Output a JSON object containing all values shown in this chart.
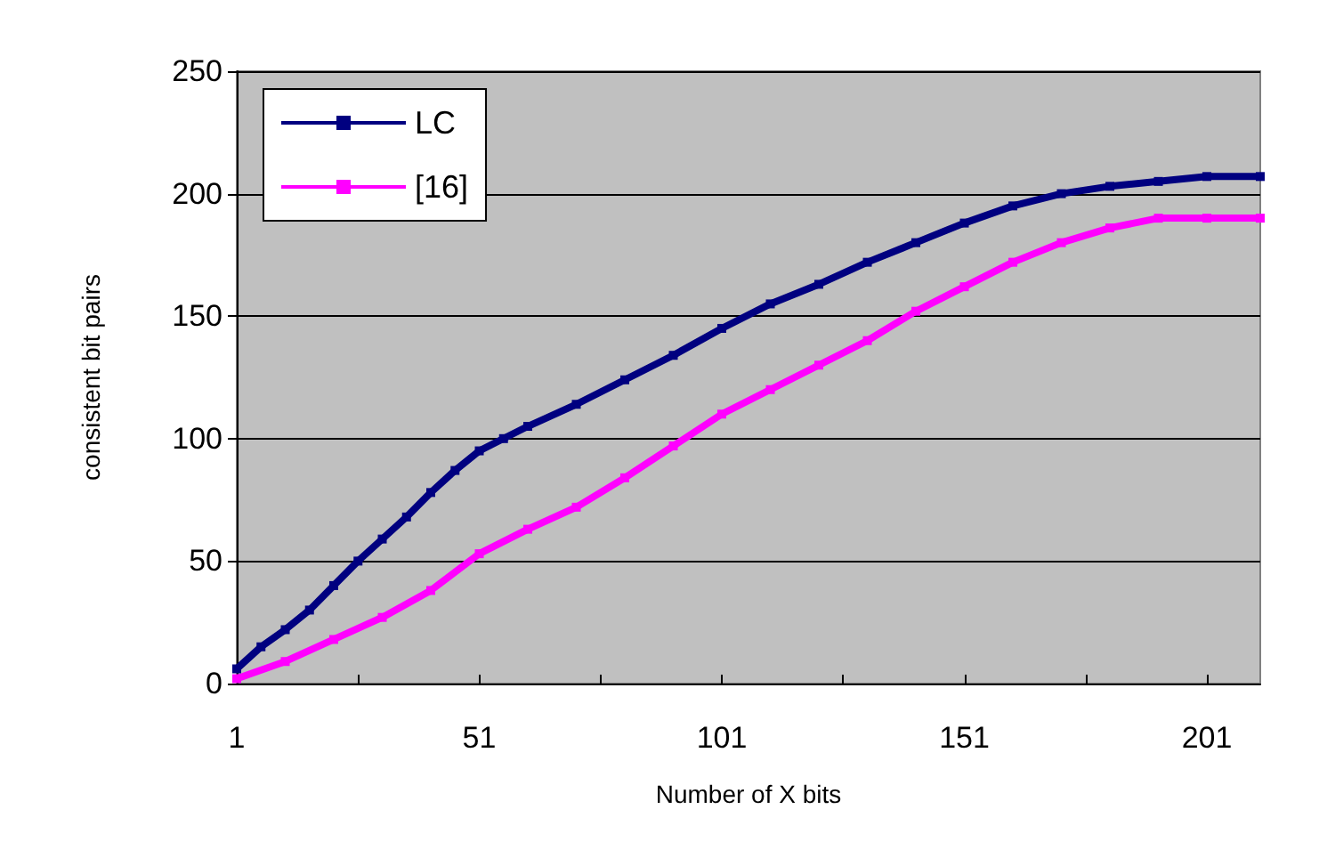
{
  "chart_data": {
    "type": "line",
    "xlabel": "Number of X bits",
    "ylabel": "consistent bit pairs",
    "xlim": [
      1,
      212
    ],
    "xticks": [
      1,
      {
        "value": 26,
        "label": null
      },
      51,
      {
        "value": 76,
        "label": null
      },
      101,
      {
        "value": 126,
        "label": null
      },
      151,
      {
        "value": 176,
        "label": null
      },
      201
    ],
    "ylim": [
      0,
      250
    ],
    "yticks": [
      0,
      50,
      100,
      150,
      200,
      250
    ],
    "grid": "y",
    "legend": "top left",
    "marker": "square",
    "line_style": "solid",
    "series": [
      {
        "name": "LC",
        "color": "#000080",
        "x": [
          1,
          6,
          11,
          16,
          21,
          26,
          31,
          36,
          41,
          46,
          51,
          56,
          61,
          71,
          81,
          91,
          101,
          111,
          121,
          131,
          141,
          151,
          161,
          171,
          181,
          191,
          201,
          212
        ],
        "values": [
          6,
          15,
          22,
          30,
          40,
          50,
          59,
          68,
          78,
          87,
          95,
          100,
          105,
          114,
          124,
          134,
          145,
          155,
          163,
          172,
          180,
          188,
          195,
          200,
          203,
          205,
          207,
          207
        ]
      },
      {
        "name": "[16]",
        "color": "#ff00ff",
        "x": [
          1,
          11,
          21,
          31,
          41,
          51,
          61,
          71,
          81,
          91,
          101,
          111,
          121,
          131,
          141,
          151,
          161,
          171,
          181,
          191,
          201,
          212
        ],
        "values": [
          2,
          9,
          18,
          27,
          38,
          53,
          63,
          72,
          84,
          97,
          110,
          120,
          130,
          140,
          152,
          162,
          172,
          180,
          186,
          190,
          190,
          190
        ]
      }
    ]
  }
}
